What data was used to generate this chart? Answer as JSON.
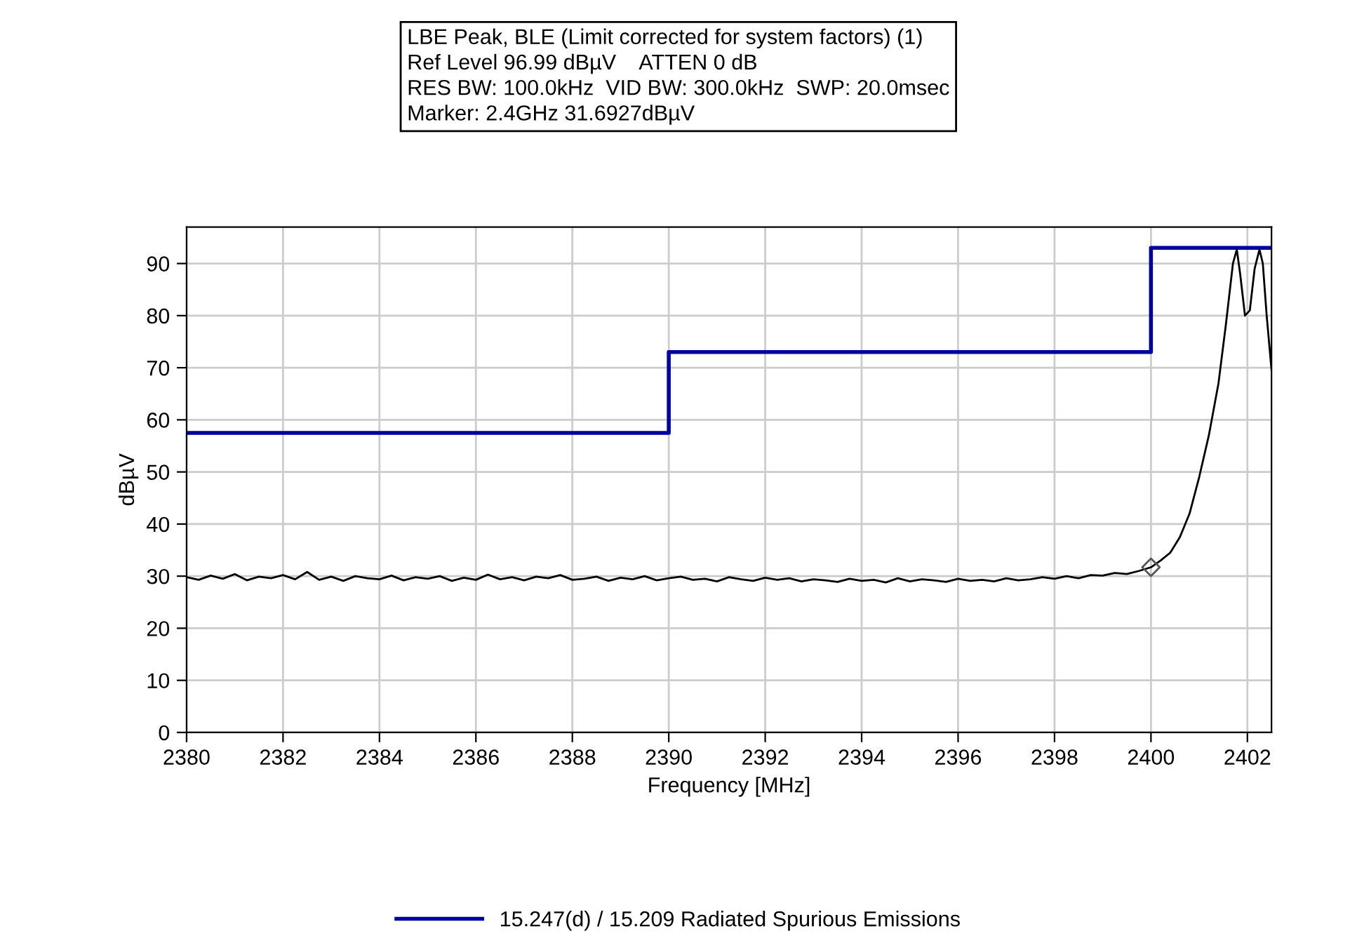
{
  "chart_data": {
    "type": "line",
    "title": "LBE Peak, BLE (Limit corrected for system factors) (1)",
    "annotations": [
      "Ref Level 96.99 dBµV    ATTEN 0 dB",
      "RES BW: 100.0kHz  VID BW: 300.0kHz  SWP: 20.0msec",
      "Marker: 2.4GHz 31.6927dBµV"
    ],
    "xlabel": "Frequency [MHz]",
    "ylabel": "dBµV",
    "xlim": [
      2380,
      2402.5
    ],
    "ylim": [
      0,
      97
    ],
    "xticks": [
      2380,
      2382,
      2384,
      2386,
      2388,
      2390,
      2392,
      2394,
      2396,
      2398,
      2400,
      2402
    ],
    "yticks": [
      0,
      10,
      20,
      30,
      40,
      50,
      60,
      70,
      80,
      90
    ],
    "grid": true,
    "legend": "bottom",
    "series": [
      {
        "name": "15.247(d) / 15.209 Radiated Spurious Emissions",
        "type": "step",
        "color": "#0000a0",
        "x": [
          2380,
          2390,
          2400,
          2402.5
        ],
        "values": [
          57.5,
          73,
          93,
          93
        ]
      },
      {
        "color": "#000000",
        "marker": "none",
        "x": [
          2380,
          2380.25,
          2380.5,
          2380.75,
          2381,
          2381.25,
          2381.5,
          2381.75,
          2382,
          2382.25,
          2382.5,
          2382.75,
          2383,
          2383.25,
          2383.5,
          2383.75,
          2384,
          2384.25,
          2384.5,
          2384.75,
          2385,
          2385.25,
          2385.5,
          2385.75,
          2386,
          2386.25,
          2386.5,
          2386.75,
          2387,
          2387.25,
          2387.5,
          2387.75,
          2388,
          2388.25,
          2388.5,
          2388.75,
          2389,
          2389.25,
          2389.5,
          2389.75,
          2390,
          2390.25,
          2390.5,
          2390.75,
          2391,
          2391.25,
          2391.5,
          2391.75,
          2392,
          2392.25,
          2392.5,
          2392.75,
          2393,
          2393.25,
          2393.5,
          2393.75,
          2394,
          2394.25,
          2394.5,
          2394.75,
          2395,
          2395.25,
          2395.5,
          2395.75,
          2396,
          2396.25,
          2396.5,
          2396.75,
          2397,
          2397.25,
          2397.5,
          2397.75,
          2398,
          2398.25,
          2398.5,
          2398.75,
          2399,
          2399.25,
          2399.5,
          2399.75,
          2400,
          2400.2,
          2400.4,
          2400.6,
          2400.8,
          2401,
          2401.2,
          2401.4,
          2401.55,
          2401.7,
          2401.78,
          2401.85,
          2401.95,
          2402.05,
          2402.15,
          2402.25,
          2402.32,
          2402.4,
          2402.5
        ],
        "values": [
          29.8,
          29.3,
          30.1,
          29.5,
          30.4,
          29.2,
          29.9,
          29.6,
          30.2,
          29.4,
          30.8,
          29.3,
          29.9,
          29.1,
          30.0,
          29.6,
          29.4,
          30.1,
          29.2,
          29.8,
          29.5,
          30.0,
          29.1,
          29.7,
          29.3,
          30.3,
          29.4,
          29.8,
          29.2,
          29.9,
          29.6,
          30.2,
          29.3,
          29.5,
          29.9,
          29.1,
          29.7,
          29.4,
          30.0,
          29.2,
          29.6,
          29.9,
          29.3,
          29.5,
          29.0,
          29.8,
          29.4,
          29.1,
          29.7,
          29.3,
          29.6,
          29.0,
          29.4,
          29.2,
          28.9,
          29.5,
          29.1,
          29.3,
          28.8,
          29.6,
          29.0,
          29.4,
          29.2,
          28.9,
          29.5,
          29.1,
          29.3,
          29.0,
          29.6,
          29.2,
          29.4,
          29.8,
          29.5,
          30.0,
          29.6,
          30.2,
          30.1,
          30.6,
          30.4,
          31.0,
          31.7,
          33.0,
          34.5,
          37.5,
          42.0,
          49.0,
          57.0,
          67.0,
          78.0,
          90.0,
          92.7,
          88.0,
          80.0,
          81.0,
          89.0,
          92.7,
          90.0,
          80.0,
          69.6
        ]
      },
      {
        "type": "scatter",
        "color": "#555555",
        "marker": "diamond",
        "x": [
          2400
        ],
        "values": [
          31.7
        ]
      }
    ]
  }
}
